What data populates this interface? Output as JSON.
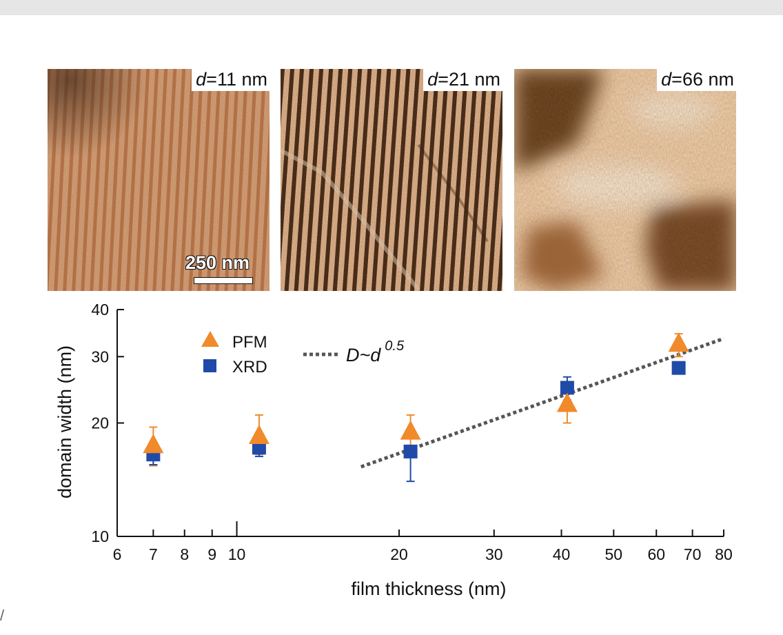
{
  "panels": [
    {
      "var": "d",
      "eq": "=",
      "value": "11 nm",
      "stripe": "vertical-fine"
    },
    {
      "var": "d",
      "eq": "=",
      "value": "21 nm",
      "stripe": "vertical-bold"
    },
    {
      "var": "d",
      "eq": "=",
      "value": "66 nm",
      "stripe": "mottled"
    }
  ],
  "scalebar": {
    "label": "250 nm"
  },
  "chart_data": {
    "type": "scatter",
    "xlabel": "film thickness (nm)",
    "ylabel": "domain width (nm)",
    "xscale": "log",
    "yscale": "log",
    "xlim": [
      6,
      80
    ],
    "ylim": [
      10,
      40
    ],
    "xticks": [
      6,
      7,
      8,
      9,
      10,
      20,
      30,
      40,
      50,
      60,
      70,
      80
    ],
    "yticks": [
      10,
      20,
      30,
      40
    ],
    "grid": false,
    "legend_position": "top-left",
    "series": [
      {
        "name": "PFM",
        "marker": "triangle",
        "color": "#f08a2b",
        "points": [
          {
            "x": 7,
            "y": 17.5,
            "err_low": 15.4,
            "err_high": 19.5
          },
          {
            "x": 11,
            "y": 18.5,
            "err_low": 16.5,
            "err_high": 21
          },
          {
            "x": 21,
            "y": 19,
            "err_low": 16.4,
            "err_high": 21
          },
          {
            "x": 41,
            "y": 22.5,
            "err_low": 20,
            "err_high": 24
          },
          {
            "x": 66,
            "y": 32.5,
            "err_low": 30,
            "err_high": 34.5
          }
        ]
      },
      {
        "name": "XRD",
        "marker": "square",
        "color": "#1f4aa8",
        "points": [
          {
            "x": 7,
            "y": 16.5,
            "err_low": 15.5,
            "err_high": 17.3
          },
          {
            "x": 11,
            "y": 17.2,
            "err_low": 16.3,
            "err_high": 18
          },
          {
            "x": 21,
            "y": 16.8,
            "err_low": 14,
            "err_high": 17.4
          },
          {
            "x": 41,
            "y": 24.8,
            "err_low": 23,
            "err_high": 26.5
          },
          {
            "x": 66,
            "y": 28,
            "err_low": 27.2,
            "err_high": 28.8
          }
        ]
      }
    ],
    "fit_line": {
      "label_main": "D~d",
      "label_exp": "0.5",
      "x": [
        17,
        80
      ],
      "y": [
        15.3,
        33.5
      ],
      "color": "#555555",
      "style": "dotted"
    }
  }
}
